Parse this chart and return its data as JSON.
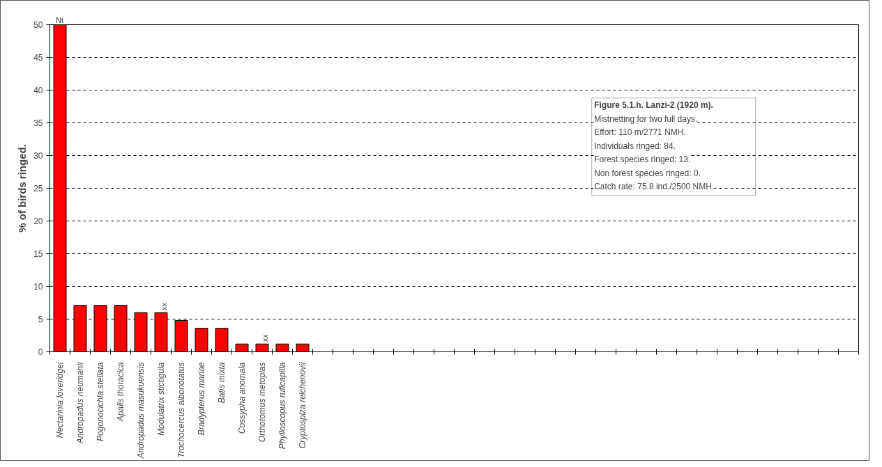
{
  "chart_data": {
    "type": "bar",
    "ylabel": "% of birds ringed.",
    "categories": [
      "Nectarinia loveridgei",
      "Andropadus neumanii",
      "Pogonocichla stellata",
      "Apalis thoracica",
      "Andropadus masukuensis",
      "Modulatrix stictigula",
      "Trochocercus albonotatus",
      "Bradypterus mariae",
      "Batis mixta",
      "Cossypha anomala",
      "Orthotomus metopias",
      "Phylloscopus ruficapilla",
      "Cryptospiza reichenovii",
      null,
      null,
      null,
      null,
      null,
      null,
      null,
      null,
      null,
      null,
      null,
      null,
      null,
      null,
      null,
      null,
      null,
      null,
      null,
      null,
      null,
      null,
      null,
      null,
      null,
      null,
      null
    ],
    "values": [
      50,
      7.1,
      7.1,
      7.1,
      6.0,
      6.0,
      4.8,
      3.6,
      3.6,
      1.2,
      1.2,
      1.2,
      1.2,
      null,
      null,
      null,
      null,
      null,
      null,
      null,
      null,
      null,
      null,
      null,
      null,
      null,
      null,
      null,
      null,
      null,
      null,
      null,
      null,
      null,
      null,
      null,
      null,
      null,
      null,
      null
    ],
    "color": "#ff0000",
    "ylim": [
      0,
      50
    ],
    "yticks": [
      0,
      5,
      10,
      15,
      20,
      25,
      30,
      35,
      40,
      45,
      50
    ],
    "grid": "y",
    "annotations": [
      {
        "text": "Nt",
        "x": "Nectarinia loveridgei",
        "y": 50
      },
      {
        "text": "xx",
        "x": "Modulatrix stictigula",
        "y": 6.0
      },
      {
        "text": "xx",
        "x": "Orthotomus metopias",
        "y": 1.2
      },
      "Figure 5.1.h. Lanzi-2 (1920 m).",
      "Mistnetting for two full days.",
      "Effort: 110 m/2771 NMH.",
      "Individuals ringed: 84.",
      "Forest species ringed: 13.",
      "Non forest species ringed: 0.",
      "Catch rate: 75.8 ind./2500 NMH."
    ]
  }
}
